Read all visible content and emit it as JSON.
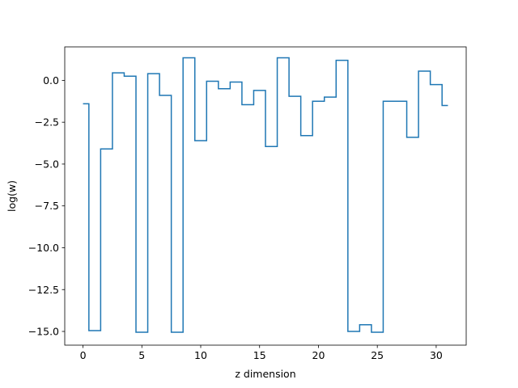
{
  "chart_data": {
    "type": "line",
    "drawstyle": "steps-mid",
    "title": "",
    "xlabel": "z dimension",
    "ylabel": "log(w)",
    "xlim": [
      -1.55,
      32.55
    ],
    "ylim": [
      -15.82,
      2.0
    ],
    "xticks": [
      0,
      5,
      10,
      15,
      20,
      25,
      30
    ],
    "xtick_labels": [
      "0",
      "5",
      "10",
      "15",
      "20",
      "25",
      "30"
    ],
    "yticks": [
      0.0,
      -2.5,
      -5.0,
      -7.5,
      -10.0,
      -12.5,
      -15.0
    ],
    "ytick_labels": [
      "0.0",
      "−2.5",
      "−5.0",
      "−7.5",
      "−10.0",
      "−12.5",
      "−15.0"
    ],
    "grid": false,
    "legend": "none",
    "series": [
      {
        "color": "#1f77b4",
        "x": [
          0,
          1,
          2,
          3,
          4,
          5,
          6,
          7,
          8,
          9,
          10,
          11,
          12,
          13,
          14,
          15,
          16,
          17,
          18,
          19,
          20,
          21,
          22,
          23,
          24,
          25,
          26,
          27,
          28,
          29,
          30,
          31
        ],
        "y": [
          -1.4,
          -14.95,
          -4.1,
          0.45,
          0.25,
          -15.05,
          0.4,
          -0.9,
          -15.05,
          1.35,
          -3.6,
          -0.05,
          -0.5,
          -0.1,
          -1.45,
          -0.6,
          -3.95,
          1.35,
          -0.95,
          -3.3,
          -1.25,
          -1.0,
          1.2,
          -15.0,
          -14.6,
          -15.05,
          -1.25,
          -1.25,
          -3.4,
          0.55,
          -0.25,
          -1.5
        ]
      }
    ]
  }
}
